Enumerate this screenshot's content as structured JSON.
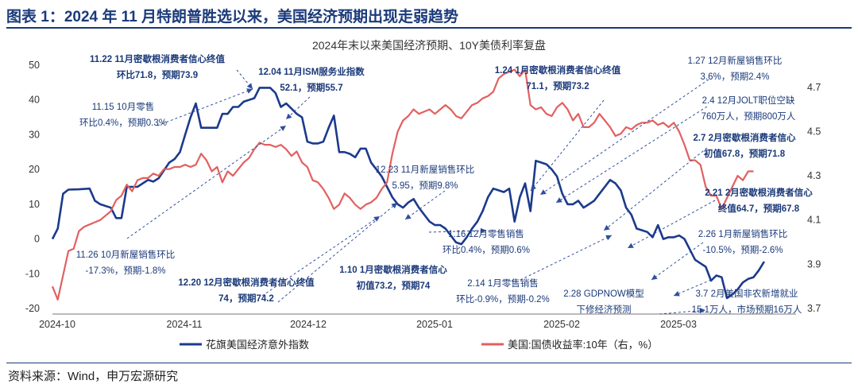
{
  "figure": {
    "title": "图表 1：2024 年 11 月特朗普胜选以来，美国经济预期出现走弱趋势",
    "source": "资料来源：Wind，申万宏源研究"
  },
  "chart_data": {
    "type": "line",
    "title": "2024年末以来美国经济预期、10Y美债利率复盘",
    "x_ticks": [
      "2024-10",
      "2024-11",
      "2024-12",
      "2025-01",
      "2025-02",
      "2025-03"
    ],
    "left_axis": {
      "ylim": [
        -20,
        50
      ],
      "ticks": [
        -20,
        -10,
        0,
        10,
        20,
        30,
        40,
        50
      ]
    },
    "right_axis": {
      "ylim": [
        3.7,
        4.8
      ],
      "ticks": [
        3.7,
        3.9,
        4.1,
        4.3,
        4.5,
        4.7
      ]
    },
    "series": [
      {
        "name": "花旗美国经济意外指数",
        "axis": "left",
        "color": "#1b3a8c",
        "values": [
          [
            0,
            0
          ],
          [
            1,
            3
          ],
          [
            2,
            13
          ],
          [
            3,
            14.2
          ],
          [
            5,
            14.3
          ],
          [
            7,
            14.5
          ],
          [
            8,
            11
          ],
          [
            9,
            10
          ],
          [
            11,
            9
          ],
          [
            12,
            6
          ],
          [
            13,
            6
          ],
          [
            14,
            15
          ],
          [
            16,
            15
          ],
          [
            18,
            17
          ],
          [
            19,
            16.5
          ],
          [
            20,
            17.5
          ],
          [
            22,
            22
          ],
          [
            23,
            23
          ],
          [
            24,
            25
          ],
          [
            25,
            30
          ],
          [
            26,
            35
          ],
          [
            27,
            39
          ],
          [
            28,
            32
          ],
          [
            30,
            32
          ],
          [
            31,
            32
          ],
          [
            32,
            36
          ],
          [
            33,
            36
          ],
          [
            34,
            38
          ],
          [
            35,
            38
          ],
          [
            36,
            39.5
          ],
          [
            37,
            40
          ],
          [
            38,
            40.5
          ],
          [
            39,
            43.5
          ],
          [
            40,
            43.5
          ],
          [
            41,
            43.5
          ],
          [
            42,
            42
          ],
          [
            43,
            38
          ],
          [
            44,
            39
          ],
          [
            45,
            37.5
          ],
          [
            46,
            36
          ],
          [
            47,
            35
          ],
          [
            48,
            28
          ],
          [
            49,
            27.5
          ],
          [
            50,
            27.5
          ],
          [
            51,
            28
          ],
          [
            52,
            32
          ],
          [
            53,
            35.5
          ],
          [
            54,
            25
          ],
          [
            55,
            25
          ],
          [
            56,
            24.5
          ],
          [
            57,
            23.5
          ],
          [
            58,
            26
          ],
          [
            59,
            26
          ],
          [
            60,
            22
          ],
          [
            61,
            20
          ],
          [
            62,
            18
          ],
          [
            63,
            15
          ],
          [
            64,
            12
          ],
          [
            65,
            10
          ],
          [
            66,
            9
          ],
          [
            67,
            10.5
          ],
          [
            68,
            11.5
          ],
          [
            69,
            9
          ],
          [
            70,
            7
          ],
          [
            71,
            5
          ],
          [
            72,
            4
          ],
          [
            73,
            4
          ],
          [
            74,
            3
          ],
          [
            75,
            1
          ],
          [
            76,
            -1
          ],
          [
            77,
            -1.5
          ],
          [
            78,
            0.5
          ],
          [
            79,
            3
          ],
          [
            80,
            5
          ],
          [
            81,
            8
          ],
          [
            82,
            12
          ],
          [
            83,
            14.5
          ],
          [
            84,
            14
          ],
          [
            85,
            13.5
          ],
          [
            86,
            14.5
          ],
          [
            87,
            5
          ],
          [
            88,
            12
          ],
          [
            89,
            16
          ],
          [
            90,
            8
          ],
          [
            91,
            22.5
          ],
          [
            92,
            22
          ],
          [
            93,
            21.5
          ],
          [
            94,
            20
          ],
          [
            95,
            18
          ],
          [
            96,
            13
          ],
          [
            97,
            10
          ],
          [
            98,
            10
          ],
          [
            99,
            11
          ],
          [
            100,
            9
          ],
          [
            101,
            10
          ],
          [
            102,
            11
          ],
          [
            103,
            13
          ],
          [
            104,
            15
          ],
          [
            105,
            17
          ],
          [
            106,
            16
          ],
          [
            107,
            14
          ],
          [
            108,
            9
          ],
          [
            109,
            7
          ],
          [
            110,
            3
          ],
          [
            111,
            2.5
          ],
          [
            112,
            2
          ],
          [
            113,
            0.5
          ],
          [
            114,
            4
          ],
          [
            115,
            0
          ],
          [
            116,
            0.5
          ],
          [
            117,
            0.5
          ],
          [
            118,
            1
          ],
          [
            119,
            0
          ],
          [
            120,
            -3
          ],
          [
            121,
            -6
          ],
          [
            122,
            -7
          ],
          [
            123,
            -8
          ],
          [
            124,
            -12
          ],
          [
            125,
            -10.5
          ],
          [
            126,
            -11
          ],
          [
            127,
            -17
          ],
          [
            128,
            -16
          ],
          [
            129,
            -14.5
          ],
          [
            130,
            -12.5
          ],
          [
            131,
            -11.5
          ],
          [
            132,
            -11
          ],
          [
            133,
            -9
          ],
          [
            134,
            -6.5
          ]
        ]
      },
      {
        "name": "美国:国债收益率:10年（右，%）",
        "axis": "right",
        "color": "#e26060",
        "values": [
          [
            0,
            3.8
          ],
          [
            1,
            3.74
          ],
          [
            2,
            3.85
          ],
          [
            3,
            3.96
          ],
          [
            4,
            3.97
          ],
          [
            5,
            4.05
          ],
          [
            6,
            4.07
          ],
          [
            7,
            4.08
          ],
          [
            8,
            4.09
          ],
          [
            9,
            4.1
          ],
          [
            10,
            4.12
          ],
          [
            11,
            4.14
          ],
          [
            12,
            4.19
          ],
          [
            13,
            4.21
          ],
          [
            14,
            4.26
          ],
          [
            15,
            4.23
          ],
          [
            16,
            4.28
          ],
          [
            17,
            4.29
          ],
          [
            18,
            4.29
          ],
          [
            19,
            4.31
          ],
          [
            20,
            4.3
          ],
          [
            21,
            4.33
          ],
          [
            22,
            4.33
          ],
          [
            23,
            4.34
          ],
          [
            24,
            4.34
          ],
          [
            25,
            4.35
          ],
          [
            26,
            4.34
          ],
          [
            27,
            4.35
          ],
          [
            28,
            4.4
          ],
          [
            29,
            4.37
          ],
          [
            30,
            4.32
          ],
          [
            31,
            4.34
          ],
          [
            32,
            4.27
          ],
          [
            33,
            4.32
          ],
          [
            34,
            4.3
          ],
          [
            35,
            4.33
          ],
          [
            36,
            4.36
          ],
          [
            37,
            4.38
          ],
          [
            38,
            4.42
          ],
          [
            39,
            4.45
          ],
          [
            40,
            4.44
          ],
          [
            41,
            4.44
          ],
          [
            42,
            4.43
          ],
          [
            43,
            4.44
          ],
          [
            44,
            4.42
          ],
          [
            45,
            4.39
          ],
          [
            46,
            4.41
          ],
          [
            47,
            4.36
          ],
          [
            48,
            4.34
          ],
          [
            49,
            4.28
          ],
          [
            50,
            4.27
          ],
          [
            51,
            4.24
          ],
          [
            52,
            4.2
          ],
          [
            53,
            4.15
          ],
          [
            54,
            4.17
          ],
          [
            55,
            4.22
          ],
          [
            56,
            4.2
          ],
          [
            57,
            4.17
          ],
          [
            58,
            4.15
          ],
          [
            59,
            4.17
          ],
          [
            60,
            4.18
          ],
          [
            61,
            4.2
          ],
          [
            62,
            4.24
          ],
          [
            63,
            4.27
          ],
          [
            64,
            4.4
          ],
          [
            65,
            4.5
          ],
          [
            66,
            4.55
          ],
          [
            67,
            4.57
          ],
          [
            68,
            4.6
          ],
          [
            69,
            4.58
          ],
          [
            70,
            4.59
          ],
          [
            71,
            4.6
          ],
          [
            72,
            4.58
          ],
          [
            73,
            4.6
          ],
          [
            74,
            4.62
          ],
          [
            75,
            4.6
          ],
          [
            76,
            4.57
          ],
          [
            77,
            4.56
          ],
          [
            78,
            4.59
          ],
          [
            79,
            4.62
          ],
          [
            80,
            4.63
          ],
          [
            81,
            4.65
          ],
          [
            82,
            4.66
          ],
          [
            83,
            4.68
          ],
          [
            84,
            4.74
          ],
          [
            85,
            4.76
          ],
          [
            86,
            4.77
          ],
          [
            87,
            4.78
          ],
          [
            88,
            4.75
          ],
          [
            89,
            4.78
          ],
          [
            90,
            4.62
          ],
          [
            91,
            4.6
          ],
          [
            92,
            4.61
          ],
          [
            93,
            4.58
          ],
          [
            94,
            4.57
          ],
          [
            95,
            4.61
          ],
          [
            96,
            4.63
          ],
          [
            97,
            4.6
          ],
          [
            98,
            4.55
          ],
          [
            99,
            4.58
          ],
          [
            100,
            4.52
          ],
          [
            101,
            4.52
          ],
          [
            102,
            4.54
          ],
          [
            103,
            4.58
          ],
          [
            104,
            4.55
          ],
          [
            105,
            4.52
          ],
          [
            106,
            4.48
          ],
          [
            107,
            4.49
          ],
          [
            108,
            4.52
          ],
          [
            109,
            4.51
          ],
          [
            110,
            4.53
          ],
          [
            111,
            4.54
          ],
          [
            112,
            4.54
          ],
          [
            113,
            4.55
          ],
          [
            114,
            4.53
          ],
          [
            115,
            4.54
          ],
          [
            116,
            4.52
          ],
          [
            117,
            4.54
          ],
          [
            118,
            4.5
          ],
          [
            119,
            4.44
          ],
          [
            120,
            4.37
          ],
          [
            121,
            4.37
          ],
          [
            122,
            4.35
          ],
          [
            123,
            4.25
          ],
          [
            124,
            4.21
          ],
          [
            125,
            4.21
          ],
          [
            126,
            4.15
          ],
          [
            127,
            4.2
          ],
          [
            128,
            4.25
          ],
          [
            129,
            4.3
          ],
          [
            130,
            4.28
          ],
          [
            131,
            4.32
          ],
          [
            132,
            4.32
          ]
        ]
      }
    ],
    "annotations": [
      {
        "id": "a1",
        "lines": [
          "11.22 11月密歇根消费者信心终值",
          "环比71.8，预期73.9"
        ],
        "bold": true
      },
      {
        "id": "a2",
        "lines": [
          "11.15 10月零售",
          "环比0.4%，预期0.3%"
        ],
        "bold": false
      },
      {
        "id": "a3",
        "lines": [
          "12.04 11月ISM服务业指数",
          "52.1，预期55.7"
        ],
        "bold": true
      },
      {
        "id": "a4",
        "lines": [
          "11.26 10月新屋销售环比",
          "-17.3%，预期-1.8%"
        ],
        "bold": false
      },
      {
        "id": "a5",
        "lines": [
          "12.20 12月密歇根消费者信心终值",
          "74，预期74.2"
        ],
        "bold": true
      },
      {
        "id": "a6",
        "lines": [
          "12.23 11月新屋销售环比",
          "5.95，预期9.8%"
        ],
        "bold": false
      },
      {
        "id": "a7",
        "lines": [
          "1.10 1月密歇根消费者信心",
          "初值73.2，预期74"
        ],
        "bold": true
      },
      {
        "id": "a8",
        "lines": [
          "1.24 1月密歇根消费者信心终值",
          "71.1，预期73.2"
        ],
        "bold": true
      },
      {
        "id": "a9",
        "lines": [
          "1.16 12月零售销售",
          "环比0.4%，预期0.6%"
        ],
        "bold": false
      },
      {
        "id": "a10",
        "lines": [
          "2.14 1月零售销售",
          "环比-0.9%，预期-0.2%"
        ],
        "bold": false
      },
      {
        "id": "a11",
        "lines": [
          "1.27 12月新屋销售环比",
          "3.6%，预期2.4%"
        ],
        "bold": false
      },
      {
        "id": "a12",
        "lines": [
          "2.4 12月JOLT职位空缺",
          "760万人，预期800万人"
        ],
        "bold": false
      },
      {
        "id": "a13",
        "lines": [
          "2.7 2月密歇根消费者信心",
          "初值67.8，预期71.8"
        ],
        "bold": true
      },
      {
        "id": "a14",
        "lines": [
          "2.21 2月密歇根消费者信心",
          "终值64.7，预期67.8"
        ],
        "bold": true
      },
      {
        "id": "a15",
        "lines": [
          "2.26 1月新屋销售环比",
          "-10.5%，预期-2.6%"
        ],
        "bold": false
      },
      {
        "id": "a16",
        "lines": [
          "2.28 GDPNOW模型",
          "下修经济预测"
        ],
        "bold": false
      },
      {
        "id": "a17",
        "lines": [
          "3.7 2月美国非农新增就业",
          "15.1万人，市场预期16万人"
        ],
        "bold": false
      }
    ]
  }
}
